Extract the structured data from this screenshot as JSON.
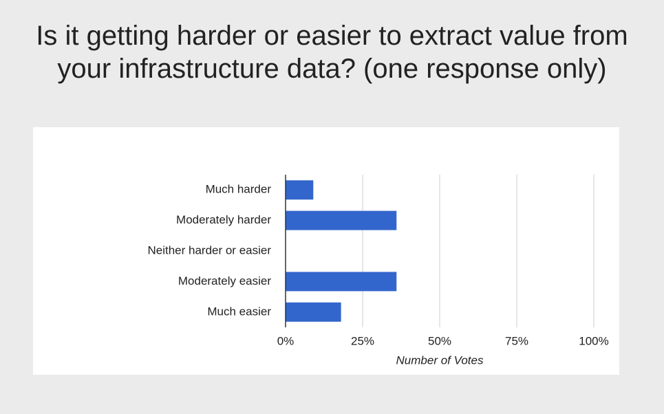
{
  "chart_data": {
    "type": "barh",
    "title": "Is it getting harder or easier to extract value from your infrastructure data? (one response only)",
    "x_label": "Number of Votes",
    "categories": [
      "Much harder",
      "Moderately harder",
      "Neither harder or easier",
      "Moderately easier",
      "Much easier"
    ],
    "values": [
      9,
      36,
      0,
      36,
      18
    ],
    "color": "#3366cc",
    "xlim": [
      0,
      100
    ],
    "xticks": [
      {
        "value": 0,
        "label": "0%"
      },
      {
        "value": 25,
        "label": "25%"
      },
      {
        "value": 50,
        "label": "50%"
      },
      {
        "value": 75,
        "label": "75%"
      },
      {
        "value": 100,
        "label": "100%"
      }
    ],
    "grid": true
  }
}
